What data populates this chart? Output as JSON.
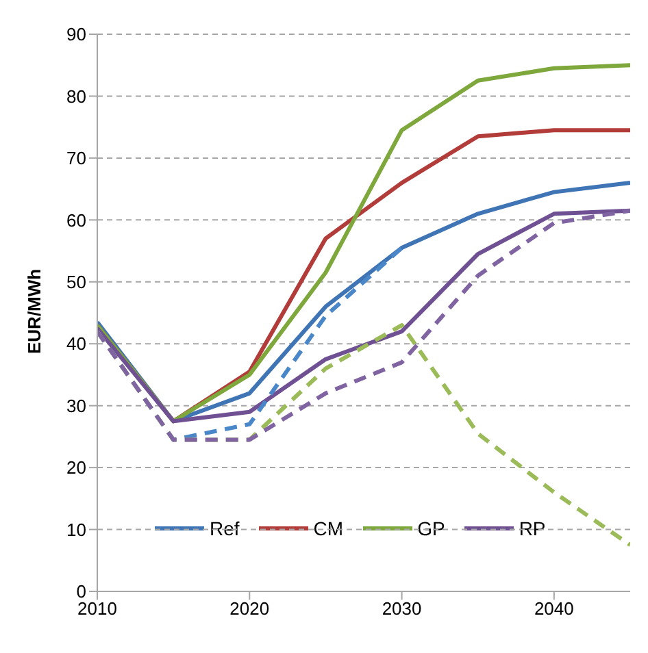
{
  "chart_data": {
    "type": "line",
    "ylabel": "EUR/MWh",
    "x": [
      2010,
      2015,
      2020,
      2025,
      2030,
      2035,
      2040,
      2045
    ],
    "xlim": [
      2010,
      2045
    ],
    "xticks": [
      2010,
      2020,
      2030,
      2040
    ],
    "ylim": [
      0,
      90
    ],
    "yticks": [
      0,
      10,
      20,
      30,
      40,
      50,
      60,
      70,
      80,
      90
    ],
    "grid": "y",
    "legend": "bottom",
    "marker": "none",
    "series": [
      {
        "name": "Ref",
        "color": "#3f74b5",
        "line_style": "solid",
        "values": [
          43.5,
          27.5,
          32,
          46,
          55.5,
          61,
          64.5,
          66
        ]
      },
      {
        "name": "CM",
        "color": "#b23c3a",
        "line_style": "solid",
        "values": [
          43,
          27.5,
          35.5,
          57,
          66,
          73.5,
          74.5,
          74.5
        ]
      },
      {
        "name": "GP",
        "color": "#7ea83c",
        "line_style": "solid",
        "values": [
          43,
          27.5,
          35,
          51.5,
          74.5,
          82.5,
          84.5,
          85
        ]
      },
      {
        "name": "RP",
        "color": "#6f5092",
        "line_style": "solid",
        "values": [
          42.5,
          27.5,
          29,
          37.5,
          42,
          54.5,
          61,
          61.5
        ]
      },
      {
        "color": "#4a87c9",
        "line_style": "dashed",
        "values": [
          42,
          24.5,
          27,
          44.5,
          55.5,
          null,
          null,
          null
        ]
      },
      {
        "color": "#9bbb59",
        "line_style": "dashed",
        "values": [
          42,
          24.5,
          24.5,
          36,
          43,
          25.5,
          16,
          7.5
        ]
      },
      {
        "color": "#8064a2",
        "line_style": "dashed",
        "values": [
          42,
          24.5,
          24.5,
          32,
          37,
          51,
          59.5,
          61.5
        ]
      }
    ]
  }
}
